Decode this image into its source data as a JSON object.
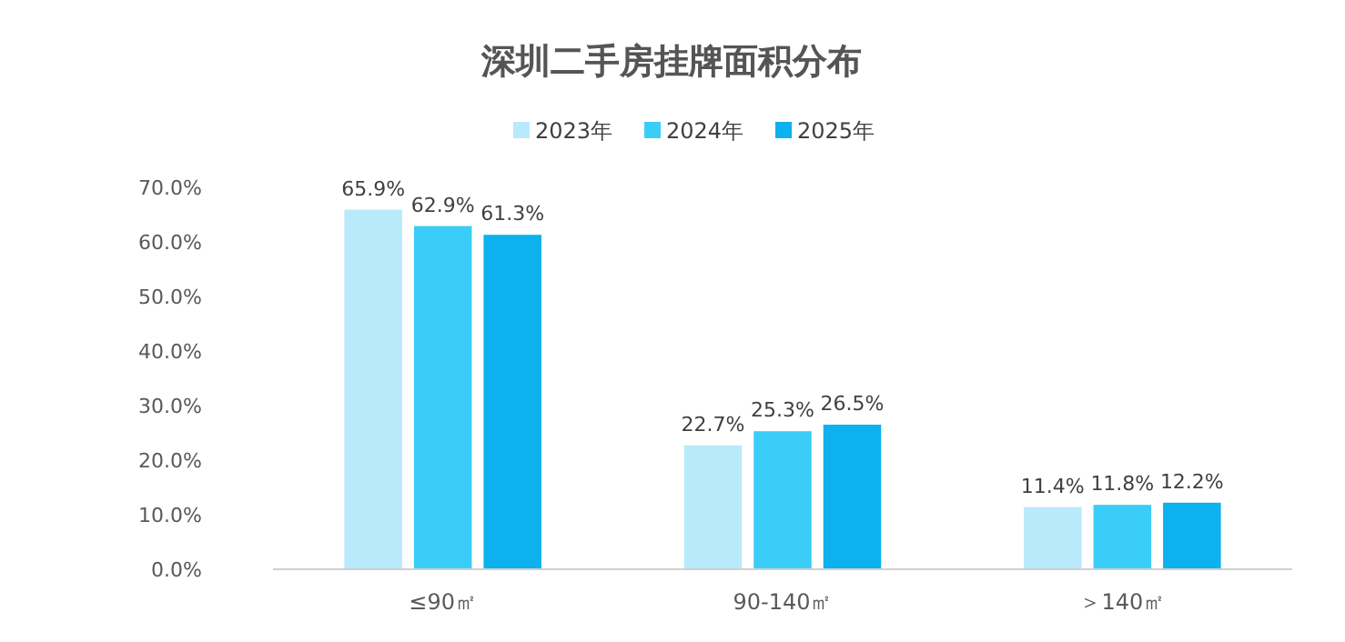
{
  "chart_data": {
    "type": "bar",
    "title": "深圳二手房挂牌面积分布",
    "categories": [
      "≤90㎡",
      "90-140㎡",
      "＞140㎡"
    ],
    "series": [
      {
        "name": "2023年",
        "color": "#b8eafb",
        "values": [
          65.9,
          22.7,
          11.4
        ],
        "value_labels": [
          "65.9%",
          "22.7%",
          "11.4%"
        ]
      },
      {
        "name": "2024年",
        "color": "#3acdf8",
        "values": [
          62.9,
          25.3,
          11.8
        ],
        "value_labels": [
          "62.9%",
          "25.3%",
          "11.8%"
        ]
      },
      {
        "name": "2025年",
        "color": "#0cb1ee",
        "values": [
          61.3,
          26.5,
          12.2
        ],
        "value_labels": [
          "61.3%",
          "26.5%",
          "12.2%"
        ]
      }
    ],
    "ylim": [
      0,
      70
    ],
    "yticks": [
      {
        "value": 0,
        "label": "0.0%"
      },
      {
        "value": 10,
        "label": "10.0%"
      },
      {
        "value": 20,
        "label": "20.0%"
      },
      {
        "value": 30,
        "label": "30.0%"
      },
      {
        "value": 40,
        "label": "40.0%"
      },
      {
        "value": 50,
        "label": "50.0%"
      },
      {
        "value": 60,
        "label": "60.0%"
      },
      {
        "value": 70,
        "label": "70.0%"
      }
    ],
    "grid": false,
    "legend": "top"
  }
}
